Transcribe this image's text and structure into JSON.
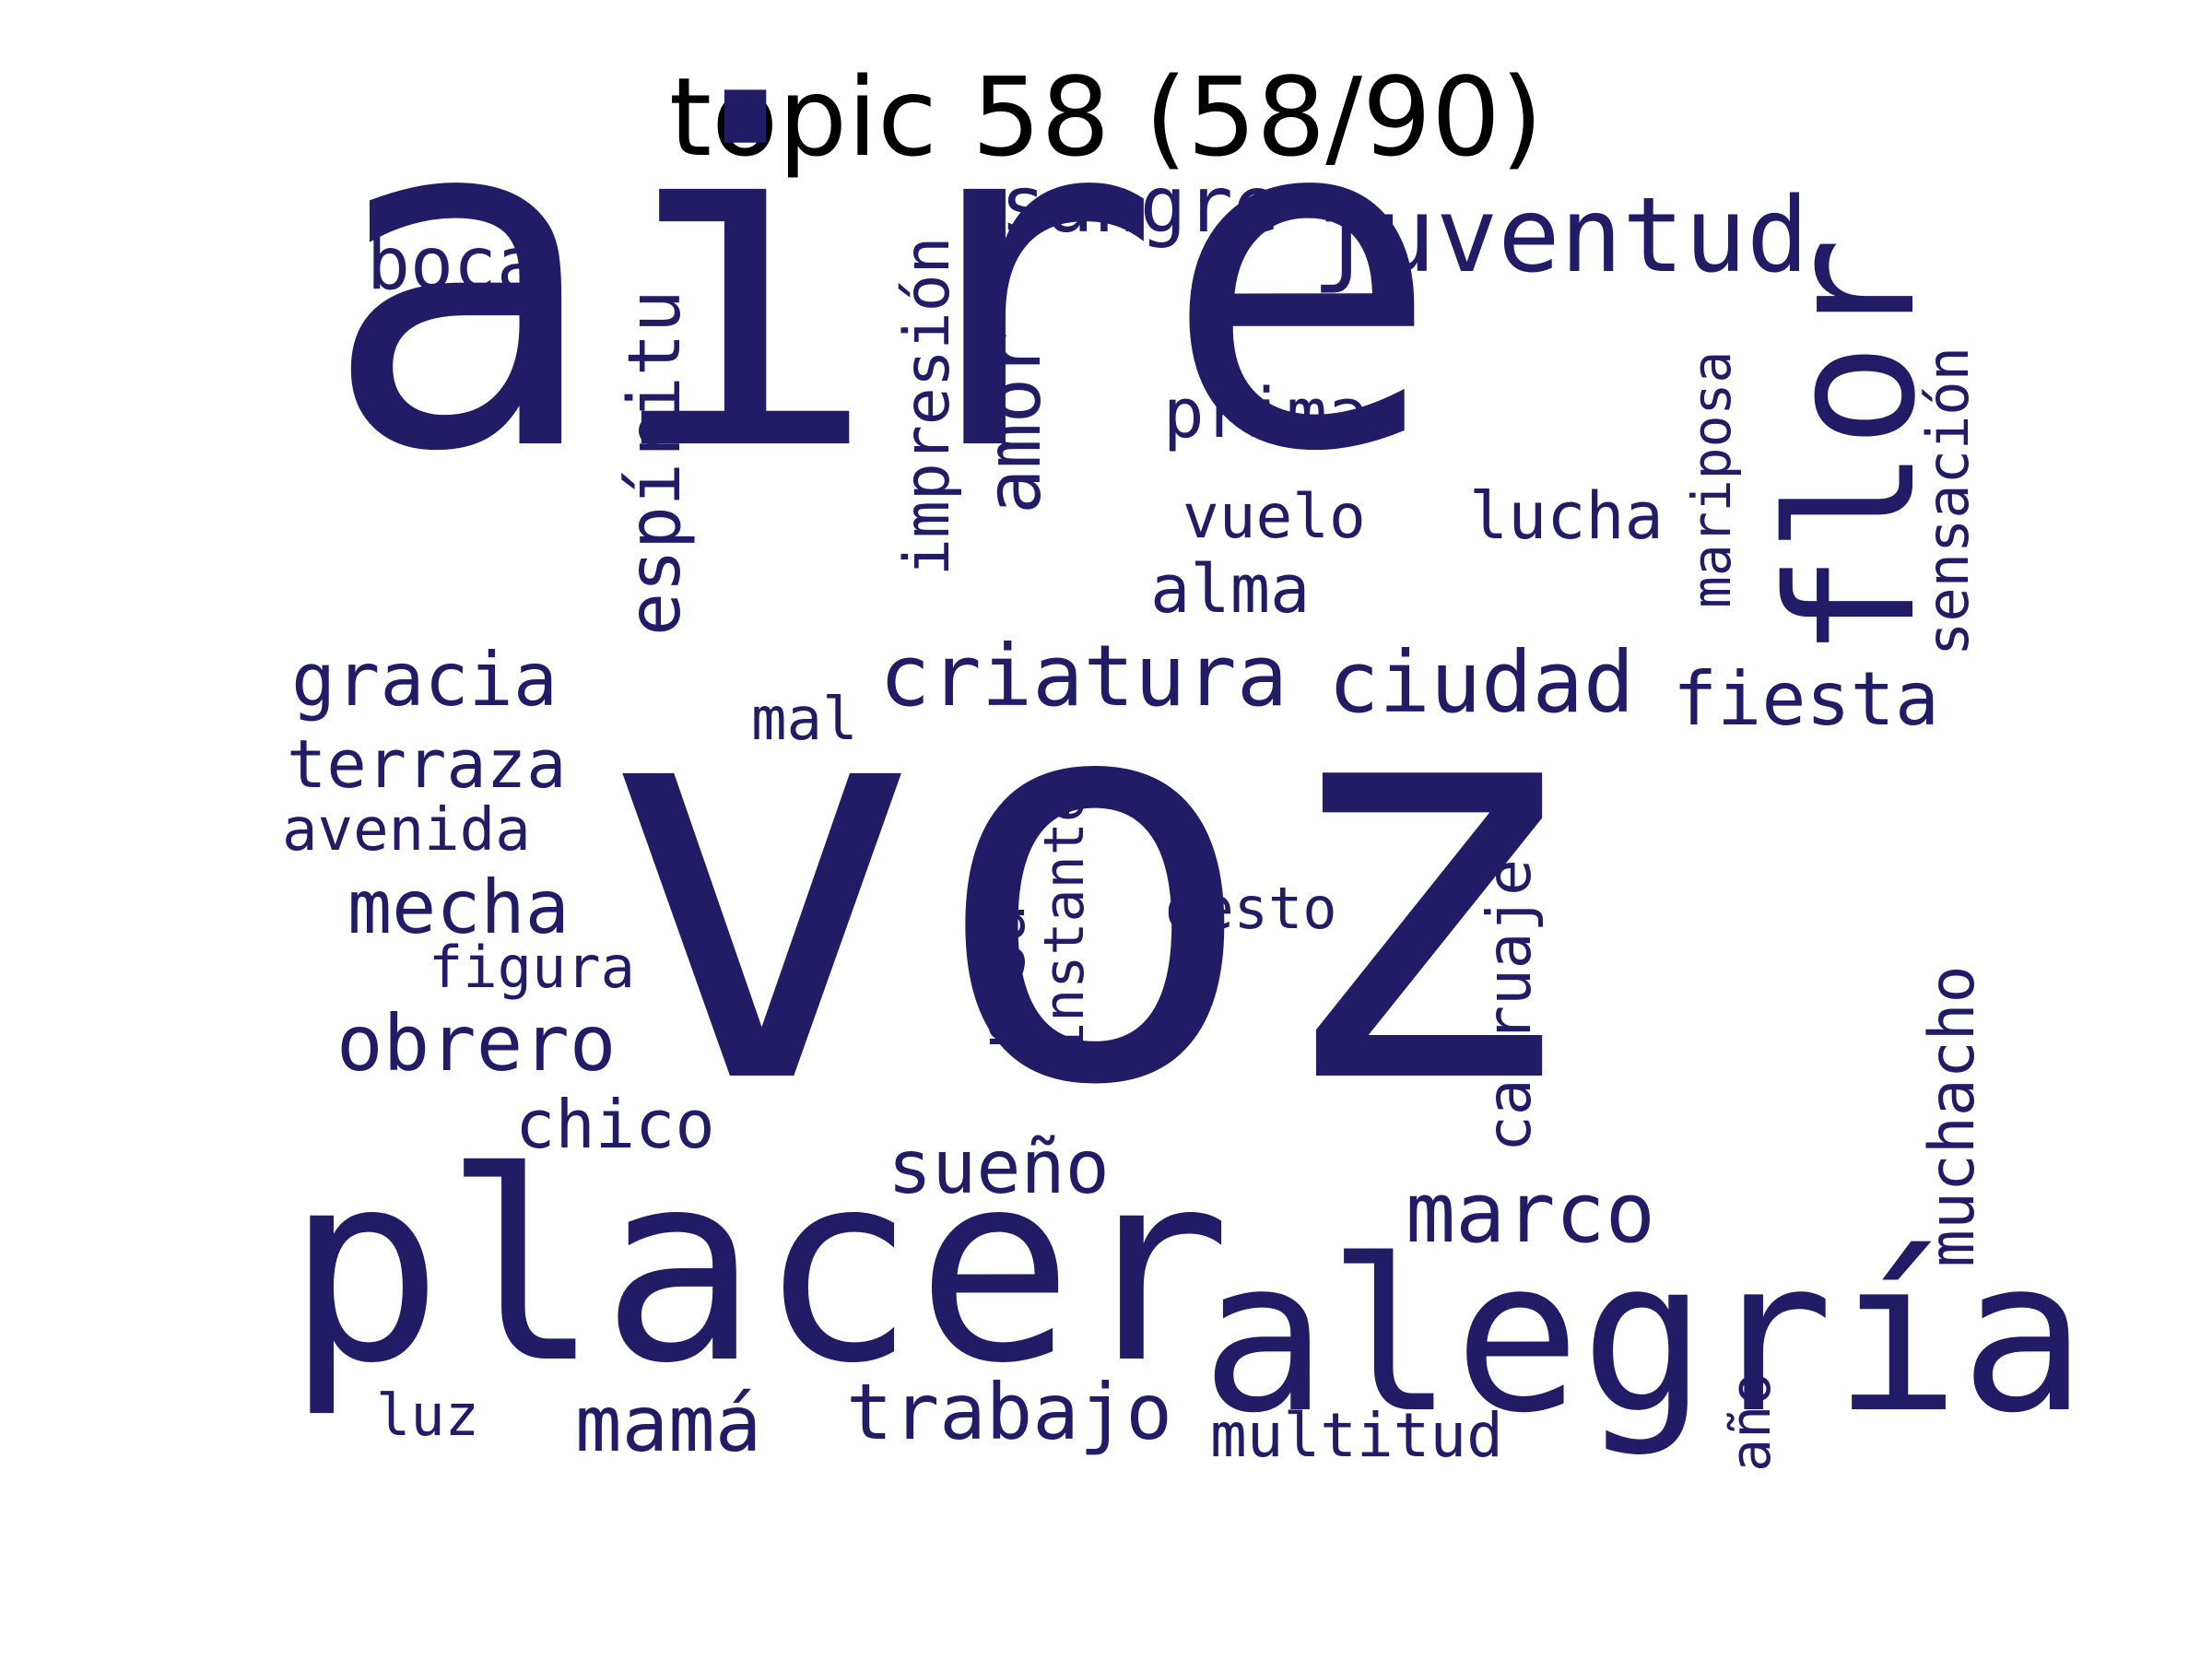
{
  "title": "topic 58 (58/90)",
  "colors": {
    "background": "#ffffff",
    "title": "#000000",
    "words": "#221c66"
  },
  "words": [
    "aire",
    "voz",
    "placer",
    "alegría",
    "flor",
    "juventud",
    "sangre",
    "impresión",
    "boca",
    "espíritu",
    "amor",
    "prima",
    "vuelo",
    "lucha",
    "mariposa",
    "sensación",
    "alma",
    "gracia",
    "criatura",
    "ciudad",
    "fiesta",
    "mal",
    "terraza",
    "avenida",
    "mecha",
    "figura",
    "obrero",
    "chico",
    "risa",
    "instante",
    "gesto",
    "carruaje",
    "muchacho",
    "sueño",
    "marco",
    "mamá",
    "trabajo",
    "multitud",
    "luz",
    "año"
  ]
}
